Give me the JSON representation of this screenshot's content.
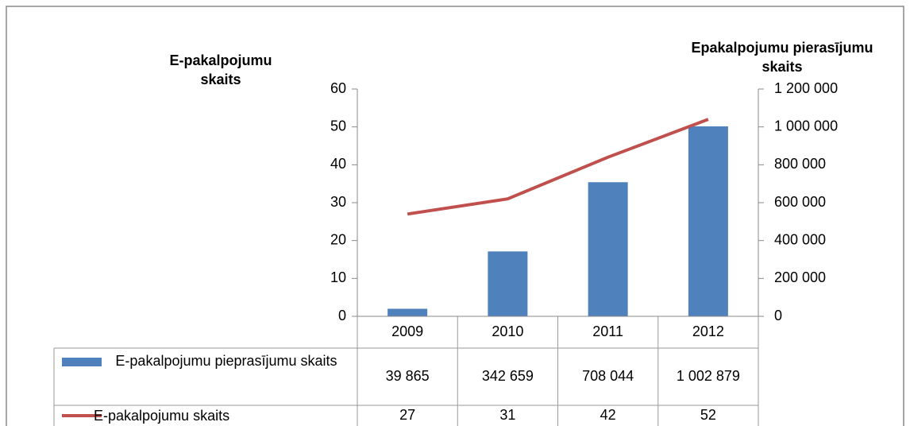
{
  "chart_data": {
    "type": "bar",
    "categories": [
      "2009",
      "2010",
      "2011",
      "2012"
    ],
    "series": [
      {
        "name": "E-pakalpojumu pieprasījumu skaits",
        "type": "bar",
        "axis": "y2",
        "color": "#4f81bd",
        "values": [
          39865,
          342659,
          708044,
          1002879
        ],
        "value_labels": [
          "39 865",
          "342 659",
          "708 044",
          "1 002 879"
        ]
      },
      {
        "name": "E-pakalpojumu skaits",
        "type": "line",
        "color": "#c0504d",
        "values": [
          27,
          31,
          42,
          52
        ]
      }
    ],
    "ylabel": "E-pakalpojumu skaits",
    "y2label": "Epakalpojumu pierasījumu skaits",
    "ylim": [
      0,
      60
    ],
    "yticks": [
      0,
      10,
      20,
      30,
      40,
      50,
      60
    ],
    "y2lim": [
      0,
      1200000
    ],
    "y2ticks": [
      0,
      {
        "value": 200000,
        "label": "200 000"
      },
      {
        "value": 400000,
        "label": "400 000"
      },
      {
        "value": 600000,
        "label": "600 000"
      },
      {
        "value": 800000,
        "label": "800 000"
      },
      {
        "value": 1000000,
        "label": "1 000 000"
      },
      {
        "value": 1200000,
        "label": "1 200 000"
      }
    ],
    "grid": false,
    "data_table": true
  }
}
